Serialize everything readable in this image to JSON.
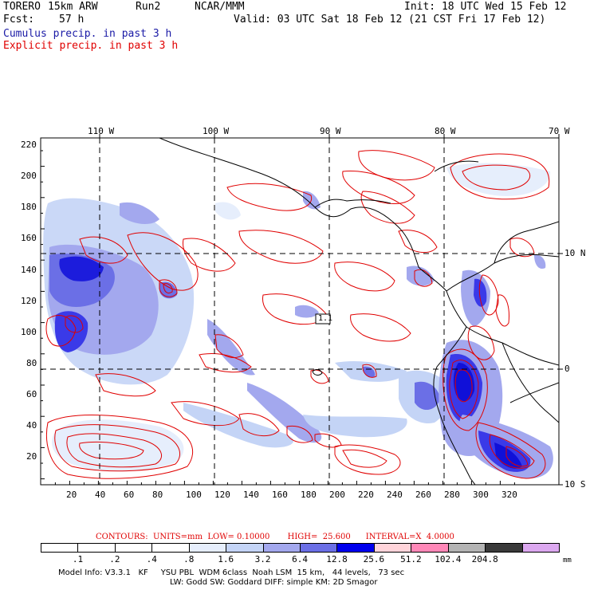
{
  "header": {
    "model": "TORERO",
    "resolution": "15km ARW",
    "run": "Run2",
    "org": "NCAR/MMM",
    "init": "Init: 18 UTC Wed 15 Feb 12",
    "fcst_label": "Fcst:",
    "fcst_value": "57 h",
    "valid": "Valid: 03 UTC Sat 18 Feb 12 (21 CST Fri 17 Feb 12)"
  },
  "legend": {
    "cumulus": "Cumulus precip. in past 3 h",
    "explicit": "Explicit precip. in past 3 h",
    "cumulus_color": "#1a1aa6",
    "explicit_color": "#e00000"
  },
  "axes": {
    "top_lon": [
      "110 W",
      "100 W",
      "90 W",
      "80 W",
      "70 W"
    ],
    "right_lat": [
      "10 N",
      "0",
      "10 S"
    ],
    "y_ticks": [
      "220",
      "200",
      "180",
      "160",
      "140",
      "120",
      "100",
      "80",
      "60",
      "40",
      "20"
    ],
    "x_ticks": [
      "20",
      "40",
      "60",
      "80",
      "100",
      "120",
      "140",
      "160",
      "180",
      "200",
      "220",
      "240",
      "260",
      "280",
      "300",
      "320"
    ]
  },
  "map_labels": {
    "box_label": "1.1"
  },
  "contours": {
    "text": "CONTOURS:  UNITS=mm  LOW= 0.10000       HIGH=  25.600      INTERVAL=X  4.0000"
  },
  "colorbar": {
    "labels": [
      ".1",
      ".2",
      ".4",
      ".8",
      "1.6",
      "3.2",
      "6.4",
      "12.8",
      "25.6",
      "51.2",
      "102.4",
      "204.8"
    ],
    "colors": [
      "#ffffff",
      "#ffffff",
      "#ffffff",
      "#ffffff",
      "#e6eefc",
      "#c4d4f6",
      "#a3a8ee",
      "#6b6fe6",
      "#0000ee",
      "#ffd4da",
      "#ff88b8",
      "#b4b4b4",
      "#3a3a3a",
      "#dca8f0"
    ],
    "unit": "mm"
  },
  "footer": {
    "line1": "Model Info: V3.3.1   KF     YSU PBL  WDM 6class  Noah LSM  15 km,   44 levels,   73 sec",
    "line2": "LW: Godd SW: Goddard DIFF: simple KM: 2D Smagor"
  }
}
